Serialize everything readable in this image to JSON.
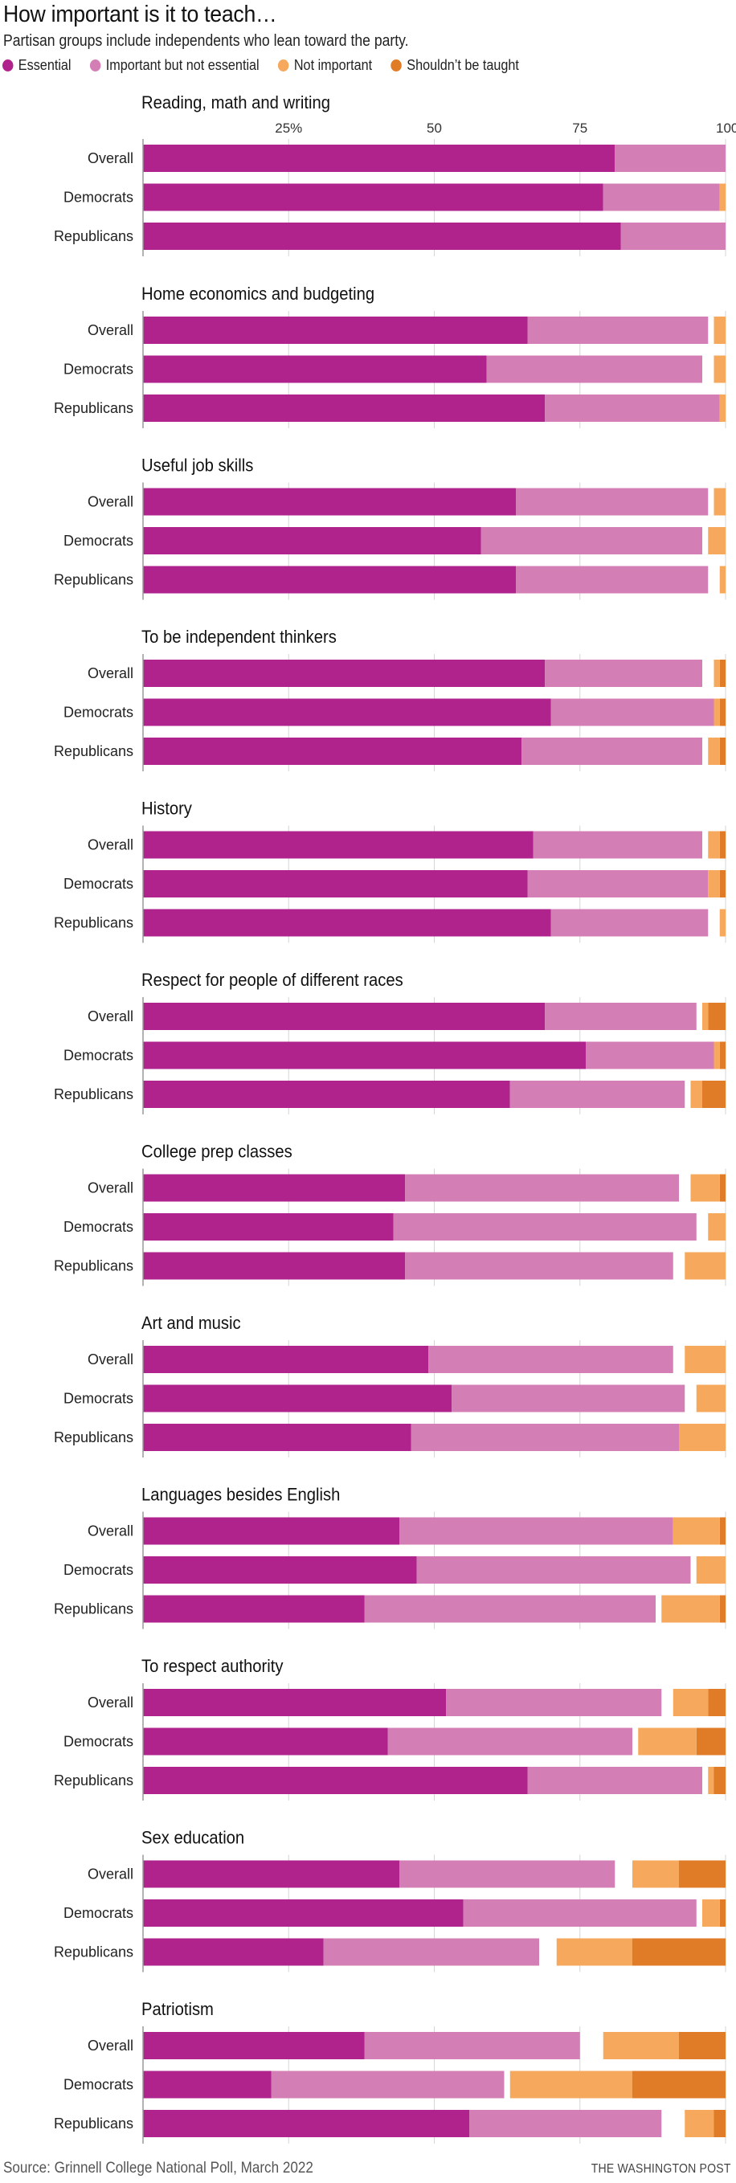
{
  "header": {
    "title": "How important is it to teach…",
    "subtitle": "Partisan groups include independents who lean toward the party."
  },
  "legend": [
    {
      "key": "essential",
      "label": "Essential",
      "color": "#b0238c"
    },
    {
      "key": "important",
      "label": "Important but not essential",
      "color": "#d37fb6"
    },
    {
      "key": "not_important",
      "label": "Not important",
      "color": "#f6a95c"
    },
    {
      "key": "shouldnt",
      "label": "Shouldn’t be taught",
      "color": "#e07b27"
    }
  ],
  "footer": {
    "source": "Source: Grinnell College National Poll, March 2022",
    "credit": "THE WASHINGTON POST"
  },
  "chart_data": {
    "type": "bar",
    "orientation": "horizontal",
    "stacked": true,
    "title": "How important is it to teach…",
    "subtitle": "Partisan groups include independents who lean toward the party.",
    "xlabel": "",
    "ylabel": "",
    "xlim": [
      0,
      100
    ],
    "x_ticks": [
      25,
      50,
      75,
      100
    ],
    "x_tick_labels": [
      "25%",
      "50",
      "75",
      "100"
    ],
    "grid": true,
    "legend_position": "top-left",
    "notes": "Essential and Important are stacked from the left; Not important and Shouldn't be taught are stacked from the right (100%); remaining gap is no answer.",
    "groups": [
      "Overall",
      "Democrats",
      "Republicans"
    ],
    "series_names": [
      "Essential",
      "Important but not essential",
      "Not important",
      "Shouldn’t be taught"
    ],
    "panels": [
      {
        "title": "Reading, math and writing",
        "rows": [
          {
            "group": "Overall",
            "values": [
              81,
              19,
              0,
              0
            ]
          },
          {
            "group": "Democrats",
            "values": [
              79,
              20,
              1,
              0
            ]
          },
          {
            "group": "Republicans",
            "values": [
              82,
              18,
              0,
              0
            ]
          }
        ]
      },
      {
        "title": "Home economics and budgeting",
        "rows": [
          {
            "group": "Overall",
            "values": [
              66,
              31,
              2,
              0
            ]
          },
          {
            "group": "Democrats",
            "values": [
              59,
              37,
              2,
              0
            ]
          },
          {
            "group": "Republicans",
            "values": [
              69,
              30,
              1,
              0
            ]
          }
        ]
      },
      {
        "title": "Useful job skills",
        "rows": [
          {
            "group": "Overall",
            "values": [
              64,
              33,
              2,
              0
            ]
          },
          {
            "group": "Democrats",
            "values": [
              58,
              38,
              3,
              0
            ]
          },
          {
            "group": "Republicans",
            "values": [
              64,
              33,
              1,
              0
            ]
          }
        ]
      },
      {
        "title": "To be independent thinkers",
        "rows": [
          {
            "group": "Overall",
            "values": [
              69,
              27,
              1,
              1
            ]
          },
          {
            "group": "Democrats",
            "values": [
              70,
              28,
              1,
              1
            ]
          },
          {
            "group": "Republicans",
            "values": [
              65,
              31,
              2,
              1
            ]
          }
        ]
      },
      {
        "title": "History",
        "rows": [
          {
            "group": "Overall",
            "values": [
              67,
              29,
              2,
              1
            ]
          },
          {
            "group": "Democrats",
            "values": [
              66,
              31,
              2,
              1
            ]
          },
          {
            "group": "Republicans",
            "values": [
              70,
              27,
              1,
              0
            ]
          }
        ]
      },
      {
        "title": "Respect for people of different races",
        "rows": [
          {
            "group": "Overall",
            "values": [
              69,
              26,
              1,
              3
            ]
          },
          {
            "group": "Democrats",
            "values": [
              76,
              22,
              1,
              1
            ]
          },
          {
            "group": "Republicans",
            "values": [
              63,
              30,
              2,
              4
            ]
          }
        ]
      },
      {
        "title": "College prep classes",
        "rows": [
          {
            "group": "Overall",
            "values": [
              45,
              47,
              5,
              1
            ]
          },
          {
            "group": "Democrats",
            "values": [
              43,
              52,
              3,
              0
            ]
          },
          {
            "group": "Republicans",
            "values": [
              45,
              46,
              7,
              0
            ]
          }
        ]
      },
      {
        "title": "Art and music",
        "rows": [
          {
            "group": "Overall",
            "values": [
              49,
              42,
              7,
              0
            ]
          },
          {
            "group": "Democrats",
            "values": [
              53,
              40,
              5,
              0
            ]
          },
          {
            "group": "Republicans",
            "values": [
              46,
              46,
              8,
              0
            ]
          }
        ]
      },
      {
        "title": "Languages besides English",
        "rows": [
          {
            "group": "Overall",
            "values": [
              44,
              47,
              8,
              1
            ]
          },
          {
            "group": "Democrats",
            "values": [
              47,
              47,
              5,
              0
            ]
          },
          {
            "group": "Republicans",
            "values": [
              38,
              50,
              10,
              1
            ]
          }
        ]
      },
      {
        "title": "To respect authority",
        "rows": [
          {
            "group": "Overall",
            "values": [
              52,
              37,
              6,
              3
            ]
          },
          {
            "group": "Democrats",
            "values": [
              42,
              42,
              10,
              5
            ]
          },
          {
            "group": "Republicans",
            "values": [
              66,
              30,
              1,
              2
            ]
          }
        ]
      },
      {
        "title": "Sex education",
        "rows": [
          {
            "group": "Overall",
            "values": [
              44,
              37,
              8,
              8
            ]
          },
          {
            "group": "Democrats",
            "values": [
              55,
              40,
              3,
              1
            ]
          },
          {
            "group": "Republicans",
            "values": [
              31,
              37,
              13,
              16
            ]
          }
        ]
      },
      {
        "title": "Patriotism",
        "rows": [
          {
            "group": "Overall",
            "values": [
              38,
              37,
              13,
              8
            ]
          },
          {
            "group": "Democrats",
            "values": [
              22,
              40,
              21,
              16
            ]
          },
          {
            "group": "Republicans",
            "values": [
              56,
              33,
              5,
              2
            ]
          }
        ]
      }
    ]
  }
}
